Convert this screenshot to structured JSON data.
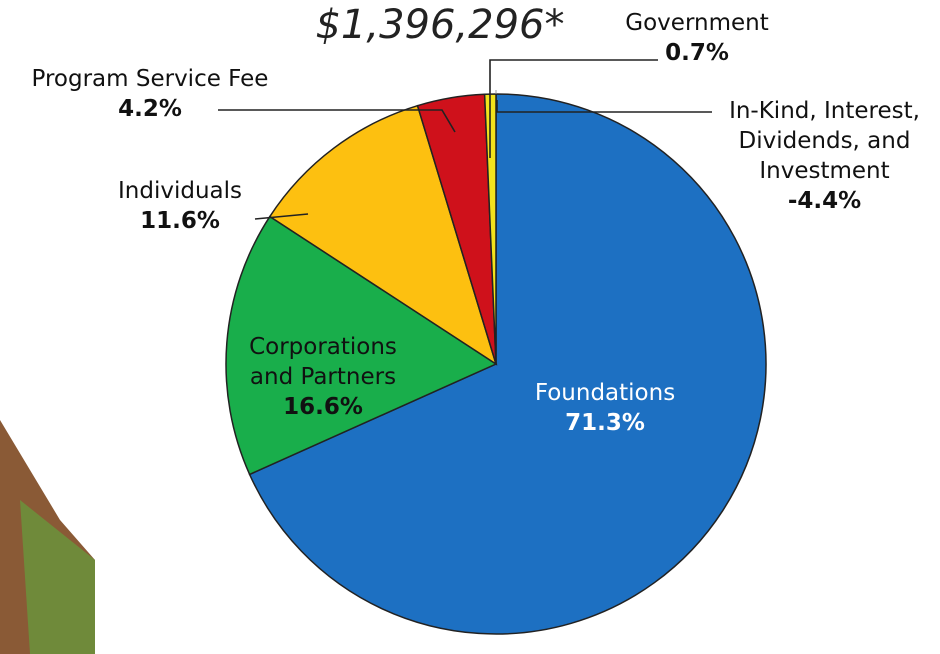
{
  "chart_data": {
    "type": "pie",
    "title": "$1,396,296*",
    "categories": [
      "Foundations",
      "Corporations and Partners",
      "Individuals",
      "Program Service Fee",
      "Government",
      "In-Kind, Interest, Dividends, and Investment"
    ],
    "values": [
      71.3,
      16.6,
      11.6,
      4.2,
      0.7,
      -4.4
    ],
    "value_labels": [
      "71.3%",
      "16.6%",
      "11.6%",
      "4.2%",
      "0.7%",
      "-4.4%"
    ],
    "colors": [
      "#1d70c2",
      "#19ae4b",
      "#fdc010",
      "#cf111b",
      "#f2e21c",
      "#999999"
    ]
  }
}
